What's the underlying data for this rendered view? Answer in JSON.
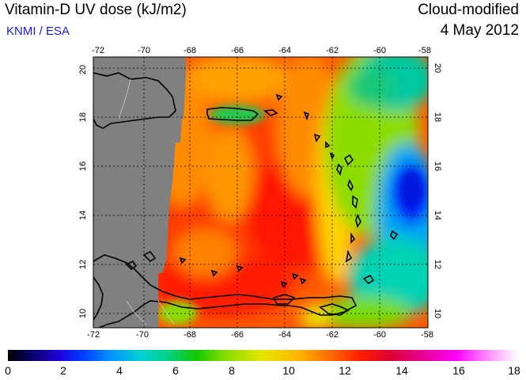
{
  "header": {
    "title": "Vitamin-D UV dose (kJ/m2)",
    "subtitle": "KNMI / ESA",
    "product": "Cloud-modified",
    "date": "4 May 2012"
  },
  "map": {
    "lon_ticks": [
      "-72",
      "-70",
      "-68",
      "-66",
      "-64",
      "-62",
      "-60",
      "-58"
    ],
    "lat_ticks": [
      "10",
      "12",
      "14",
      "16",
      "18",
      "20"
    ],
    "lon_range": [
      -72,
      -58
    ],
    "lat_range": [
      9.5,
      20.5
    ],
    "no_data_color": "#808080"
  },
  "colorbar": {
    "labels": [
      "0",
      "2",
      "4",
      "6",
      "8",
      "10",
      "12",
      "14",
      "16",
      "18"
    ],
    "range": [
      0,
      18
    ]
  }
}
